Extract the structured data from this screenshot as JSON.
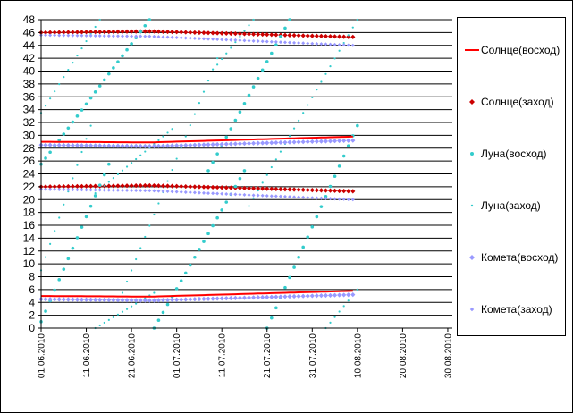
{
  "chart_data": {
    "type": "scatter",
    "x_start": "01.06.2010",
    "x_ticks": [
      "01.06.2010",
      "11.06.2010",
      "21.06.2010",
      "01.07.2010",
      "11.07.2010",
      "21.07.2010",
      "31.07.2010",
      "10.08.2010",
      "20.08.2010",
      "30.08.2010"
    ],
    "y_ticks": [
      "0",
      "2",
      "4",
      "6",
      "8",
      "10",
      "12",
      "14",
      "16",
      "18",
      "20",
      "22",
      "24",
      "26",
      "28",
      "30",
      "32",
      "34",
      "36",
      "38",
      "40",
      "42",
      "44",
      "46",
      "48"
    ],
    "ylim": [
      0,
      48
    ],
    "grid": "horizontal",
    "legend_position": "right",
    "series": [
      {
        "name": "Солнце(восход)",
        "color": "#ff0000",
        "marker": "line",
        "segments": [
          {
            "x_from": "01.06.2010",
            "x_to": "09.08.2010",
            "y_from": 5.0,
            "y_mid": 4.9,
            "y_to": 5.8
          },
          {
            "x_from": "01.06.2010",
            "x_to": "09.08.2010",
            "y_from": 29.0,
            "y_mid": 28.9,
            "y_to": 29.8
          }
        ]
      },
      {
        "name": "Солнце(заход)",
        "color": "#cc0000",
        "marker": "diamond",
        "segments": [
          {
            "x_from": "01.06.2010",
            "x_to": "09.08.2010",
            "y_from": 22.0,
            "y_mid": 22.2,
            "y_to": 21.3
          },
          {
            "x_from": "01.06.2010",
            "x_to": "09.08.2010",
            "y_from": 46.0,
            "y_mid": 46.2,
            "y_to": 45.3
          }
        ]
      },
      {
        "name": "Луна(восход)",
        "color": "#33cccc",
        "marker": "dot",
        "segments": [
          {
            "x_from": "01.06.2010",
            "x_to": "16.06.2010",
            "y_from": 1.0,
            "y_to": 25.5
          },
          {
            "x_from": "01.06.2010",
            "x_to": "25.06.2010",
            "y_from": 25.5,
            "y_to": 48.0
          },
          {
            "x_from": "26.06.2010",
            "x_to": "16.07.2010",
            "y_from": 0.0,
            "y_to": 24.5
          },
          {
            "x_from": "08.07.2010",
            "x_to": "26.07.2010",
            "y_from": 24.5,
            "y_to": 48.0
          },
          {
            "x_from": "21.07.2010",
            "x_to": "10.08.2010",
            "y_from": 0.0,
            "y_to": 31.5
          }
        ]
      },
      {
        "name": "Луна(заход)",
        "color": "#33cccc",
        "marker": "small-dot",
        "segments": [
          {
            "x_from": "01.06.2010",
            "x_to": "12.06.2010",
            "y_from": 9.0,
            "y_to": 31.5
          },
          {
            "x_from": "01.06.2010",
            "x_to": "14.06.2010",
            "y_from": 33.5,
            "y_to": 48.0
          },
          {
            "x_from": "13.06.2010",
            "x_to": "26.06.2010",
            "y_from": 0.0,
            "y_to": 5.5
          },
          {
            "x_from": "13.06.2010",
            "x_to": "30.06.2010",
            "y_from": 21.0,
            "y_to": 31.0
          },
          {
            "x_from": "19.06.2010",
            "x_to": "10.07.2010",
            "y_from": 5.5,
            "y_to": 42.0
          },
          {
            "x_from": "10.07.2010",
            "x_to": "18.07.2010",
            "y_from": 41.0,
            "y_to": 48.0
          },
          {
            "x_from": "17.07.2010",
            "x_to": "10.08.2010",
            "y_from": 19.0,
            "y_to": 48.0
          },
          {
            "x_from": "03.08.2010",
            "x_to": "10.08.2010",
            "y_from": 0.0,
            "y_to": 6.0
          }
        ]
      },
      {
        "name": "Комета(восход)",
        "color": "#9999ff",
        "marker": "diamond",
        "segments": [
          {
            "x_from": "01.06.2010",
            "x_to": "09.08.2010",
            "y_from": 4.5,
            "y_mid": 4.3,
            "y_to": 5.2
          },
          {
            "x_from": "01.06.2010",
            "x_to": "09.08.2010",
            "y_from": 28.5,
            "y_mid": 28.3,
            "y_to": 29.2
          }
        ]
      },
      {
        "name": "Комета(заход)",
        "color": "#9999ff",
        "marker": "small-diamond",
        "segments": [
          {
            "x_from": "01.06.2010",
            "x_to": "09.08.2010",
            "y_from": 21.6,
            "y_mid": 21.4,
            "y_to": 20.0
          },
          {
            "x_from": "01.06.2010",
            "x_to": "09.08.2010",
            "y_from": 45.6,
            "y_mid": 45.4,
            "y_to": 44.0
          }
        ]
      }
    ]
  }
}
